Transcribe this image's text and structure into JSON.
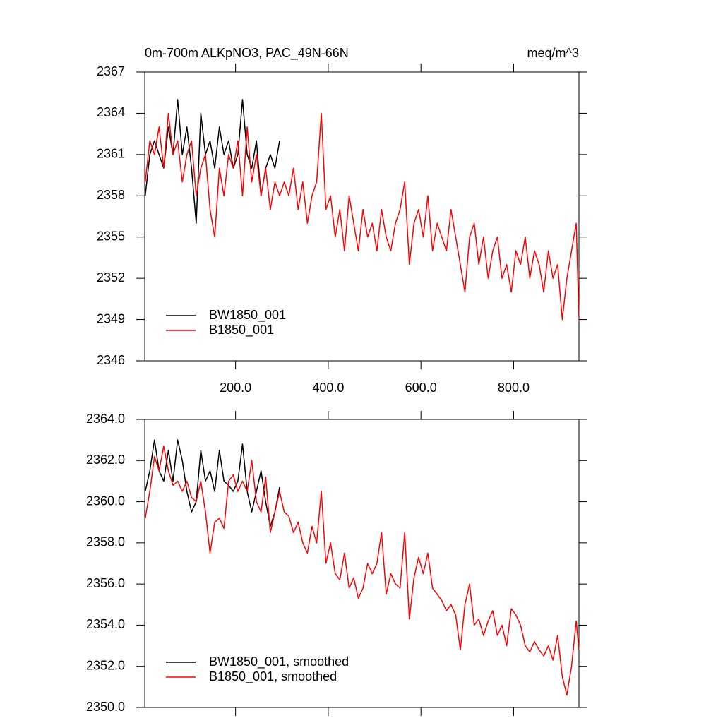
{
  "chart_data": [
    {
      "type": "line",
      "title": "0m-700m ALKpNO3, PAC_49N-66N",
      "units": "meq/m^3",
      "xlim": [
        4,
        941
      ],
      "ylim": [
        2346,
        2367
      ],
      "xticks": [
        {
          "value": 200,
          "label": "200.0"
        },
        {
          "value": 400,
          "label": "400.0"
        },
        {
          "value": 600,
          "label": "600.0"
        },
        {
          "value": 800,
          "label": "800.0"
        }
      ],
      "yticks": [
        2346,
        2349,
        2352,
        2355,
        2358,
        2361,
        2364,
        2367
      ],
      "legend": "lower left",
      "series": [
        {
          "name": "BW1850_001",
          "color": "#000000",
          "x": [
            5,
            15,
            25,
            35,
            45,
            55,
            65,
            75,
            85,
            95,
            105,
            115,
            125,
            135,
            145,
            155,
            165,
            175,
            185,
            195,
            205,
            215,
            225,
            235,
            245,
            255,
            265,
            275,
            285,
            295
          ],
          "values": [
            2358,
            2361,
            2362,
            2361,
            2360,
            2363,
            2361,
            2365,
            2361,
            2363,
            2360,
            2356,
            2364,
            2361,
            2362,
            2360,
            2363,
            2361,
            2362,
            2360,
            2361,
            2365,
            2361,
            2360,
            2362,
            2358,
            2360,
            2361,
            2360,
            2362
          ]
        },
        {
          "name": "B1850_001",
          "color": "#ff0000",
          "x": [
            5,
            15,
            25,
            35,
            45,
            55,
            65,
            75,
            85,
            95,
            105,
            115,
            125,
            135,
            145,
            155,
            165,
            175,
            185,
            195,
            205,
            215,
            225,
            235,
            245,
            255,
            265,
            275,
            285,
            295,
            305,
            315,
            325,
            335,
            345,
            355,
            365,
            375,
            385,
            395,
            405,
            415,
            425,
            435,
            445,
            455,
            465,
            475,
            485,
            495,
            505,
            515,
            525,
            535,
            545,
            555,
            565,
            575,
            585,
            595,
            605,
            615,
            625,
            635,
            645,
            655,
            665,
            675,
            685,
            695,
            705,
            715,
            725,
            735,
            745,
            755,
            765,
            775,
            785,
            795,
            805,
            815,
            825,
            835,
            845,
            855,
            865,
            875,
            885,
            895,
            905,
            915,
            925,
            935,
            941
          ],
          "values": [
            2359,
            2362,
            2361,
            2363,
            2360,
            2364,
            2361,
            2362,
            2359,
            2361,
            2362,
            2358,
            2360,
            2361,
            2357,
            2355,
            2360,
            2358,
            2361,
            2360,
            2362,
            2358,
            2363,
            2359,
            2361,
            2358,
            2360,
            2357,
            2359,
            2358,
            2359,
            2358,
            2360,
            2357,
            2359,
            2356,
            2358,
            2359,
            2364,
            2357,
            2358,
            2355,
            2357,
            2354,
            2358,
            2356,
            2354,
            2357,
            2355,
            2356,
            2354,
            2357,
            2355,
            2354,
            2356,
            2357,
            2359,
            2353,
            2356,
            2357,
            2355,
            2358,
            2354,
            2356,
            2355,
            2354,
            2357,
            2355,
            2353,
            2351,
            2355,
            2356,
            2353,
            2355,
            2352,
            2354,
            2355,
            2352,
            2353,
            2351,
            2354,
            2353,
            2355,
            2352,
            2354,
            2353,
            2351,
            2354,
            2352,
            2353,
            2349,
            2352,
            2354,
            2356,
            2349
          ]
        }
      ]
    },
    {
      "type": "line",
      "xlim": [
        4,
        941
      ],
      "ylim": [
        2350,
        2364
      ],
      "xticks": [
        200,
        400,
        600,
        800
      ],
      "xtick_labels": false,
      "yticks": [
        {
          "value": 2350,
          "label": "2350.0"
        },
        {
          "value": 2352,
          "label": "2352.0"
        },
        {
          "value": 2354,
          "label": "2354.0"
        },
        {
          "value": 2356,
          "label": "2356.0"
        },
        {
          "value": 2358,
          "label": "2358.0"
        },
        {
          "value": 2360,
          "label": "2360.0"
        },
        {
          "value": 2362,
          "label": "2362.0"
        },
        {
          "value": 2364,
          "label": "2364.0"
        }
      ],
      "legend": "lower left",
      "series": [
        {
          "name": "BW1850_001, smoothed",
          "color": "#000000",
          "x": [
            5,
            15,
            25,
            35,
            45,
            55,
            65,
            75,
            85,
            95,
            105,
            115,
            125,
            135,
            145,
            155,
            165,
            175,
            185,
            195,
            205,
            215,
            225,
            235,
            245,
            255,
            265,
            275,
            285,
            295
          ],
          "values": [
            2360.5,
            2361.5,
            2363,
            2361.5,
            2361,
            2362.5,
            2361,
            2363,
            2362,
            2360.5,
            2359.5,
            2360,
            2362.5,
            2361,
            2361.5,
            2360.5,
            2362.5,
            2361,
            2360.8,
            2360.5,
            2361,
            2362.8,
            2360.5,
            2359.5,
            2360.5,
            2361.5,
            2360,
            2358.8,
            2359.5,
            2360.7
          ]
        },
        {
          "name": "B1850_001, smoothed",
          "color": "#ff0000",
          "x": [
            5,
            15,
            25,
            35,
            45,
            55,
            65,
            75,
            85,
            95,
            105,
            115,
            125,
            135,
            145,
            155,
            165,
            175,
            185,
            195,
            205,
            215,
            225,
            235,
            245,
            255,
            265,
            275,
            285,
            295,
            305,
            315,
            325,
            335,
            345,
            355,
            365,
            375,
            385,
            395,
            405,
            415,
            425,
            435,
            445,
            455,
            465,
            475,
            485,
            495,
            505,
            515,
            525,
            535,
            545,
            555,
            565,
            575,
            585,
            595,
            605,
            615,
            625,
            635,
            645,
            655,
            665,
            675,
            685,
            695,
            705,
            715,
            725,
            735,
            745,
            755,
            765,
            775,
            785,
            795,
            805,
            815,
            825,
            835,
            845,
            855,
            865,
            875,
            885,
            895,
            905,
            915,
            925,
            935,
            941
          ],
          "values": [
            2359.2,
            2360.5,
            2362.2,
            2361.5,
            2362.7,
            2361.5,
            2360.8,
            2361,
            2360.5,
            2361,
            2360.2,
            2360,
            2361,
            2359.5,
            2357.5,
            2359,
            2359.2,
            2358.7,
            2361,
            2361.3,
            2360.5,
            2361,
            2360.5,
            2362,
            2360,
            2359.5,
            2361.2,
            2358.5,
            2359.5,
            2360.5,
            2359.5,
            2359.3,
            2358.5,
            2359,
            2358,
            2357.5,
            2358.8,
            2358,
            2360.5,
            2357,
            2358,
            2356.5,
            2356.2,
            2357.5,
            2355.8,
            2356.3,
            2355.3,
            2355.8,
            2357,
            2356.5,
            2357,
            2358.5,
            2355.5,
            2356.5,
            2356,
            2355.8,
            2358.5,
            2354.3,
            2356.3,
            2357.3,
            2356.5,
            2357.5,
            2355.8,
            2355.5,
            2355.2,
            2354.7,
            2355,
            2354.5,
            2352.8,
            2355,
            2356,
            2354,
            2354.3,
            2353.5,
            2354.2,
            2354.7,
            2353.5,
            2354,
            2353,
            2354.8,
            2354.5,
            2354,
            2353,
            2352.7,
            2353.2,
            2352.8,
            2352.5,
            2353,
            2352.3,
            2353.5,
            2351.5,
            2350.6,
            2352,
            2354.2,
            2352.8
          ]
        }
      ]
    }
  ]
}
